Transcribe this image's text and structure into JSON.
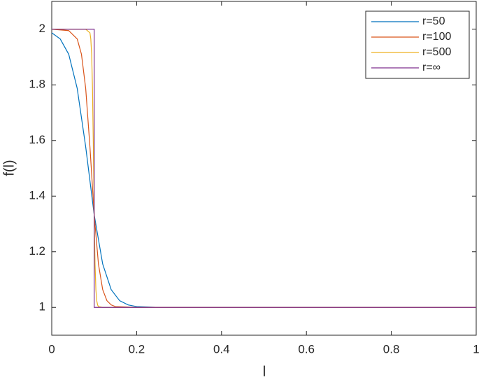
{
  "chart_data": {
    "type": "line",
    "xlabel": "l",
    "ylabel": "f(l)",
    "xlim": [
      0,
      1
    ],
    "ylim": [
      0.9,
      2.1
    ],
    "xticks": [
      0,
      0.2,
      0.4,
      0.6,
      0.8,
      1
    ],
    "yticks": [
      1,
      1.2,
      1.4,
      1.6,
      1.8,
      2
    ],
    "grid": false,
    "legend_loc": "northeast",
    "series": [
      {
        "name": "r=50",
        "color": "#0072BD",
        "x": [
          0,
          0.02,
          0.04,
          0.06,
          0.08,
          0.1,
          0.12,
          0.14,
          0.16,
          0.18,
          0.2,
          0.25,
          1
        ],
        "values": [
          1.987,
          1.965,
          1.91,
          1.787,
          1.577,
          1.333,
          1.156,
          1.064,
          1.024,
          1.009,
          1.003,
          1.0,
          1
        ]
      },
      {
        "name": "r=100",
        "color": "#D95319",
        "x": [
          0,
          0.04,
          0.06,
          0.07,
          0.08,
          0.09,
          0.1,
          0.11,
          0.12,
          0.13,
          0.14,
          0.15,
          0.2,
          1
        ],
        "values": [
          2,
          1.995,
          1.965,
          1.91,
          1.787,
          1.577,
          1.333,
          1.156,
          1.064,
          1.024,
          1.009,
          1.003,
          1.0,
          1
        ]
      },
      {
        "name": "r=500",
        "color": "#EDB120",
        "x": [
          0,
          0.08,
          0.09,
          0.092,
          0.094,
          0.096,
          0.098,
          0.1,
          0.102,
          0.104,
          0.106,
          0.108,
          0.11,
          0.12,
          1
        ],
        "values": [
          2,
          2.0,
          1.987,
          1.965,
          1.91,
          1.787,
          1.577,
          1.333,
          1.156,
          1.064,
          1.024,
          1.009,
          1.003,
          1,
          1
        ]
      },
      {
        "name": "r=∞",
        "color": "#7E2F8E",
        "x": [
          0,
          0.1,
          0.1,
          1
        ],
        "values": [
          2,
          2,
          1,
          1
        ]
      }
    ]
  }
}
